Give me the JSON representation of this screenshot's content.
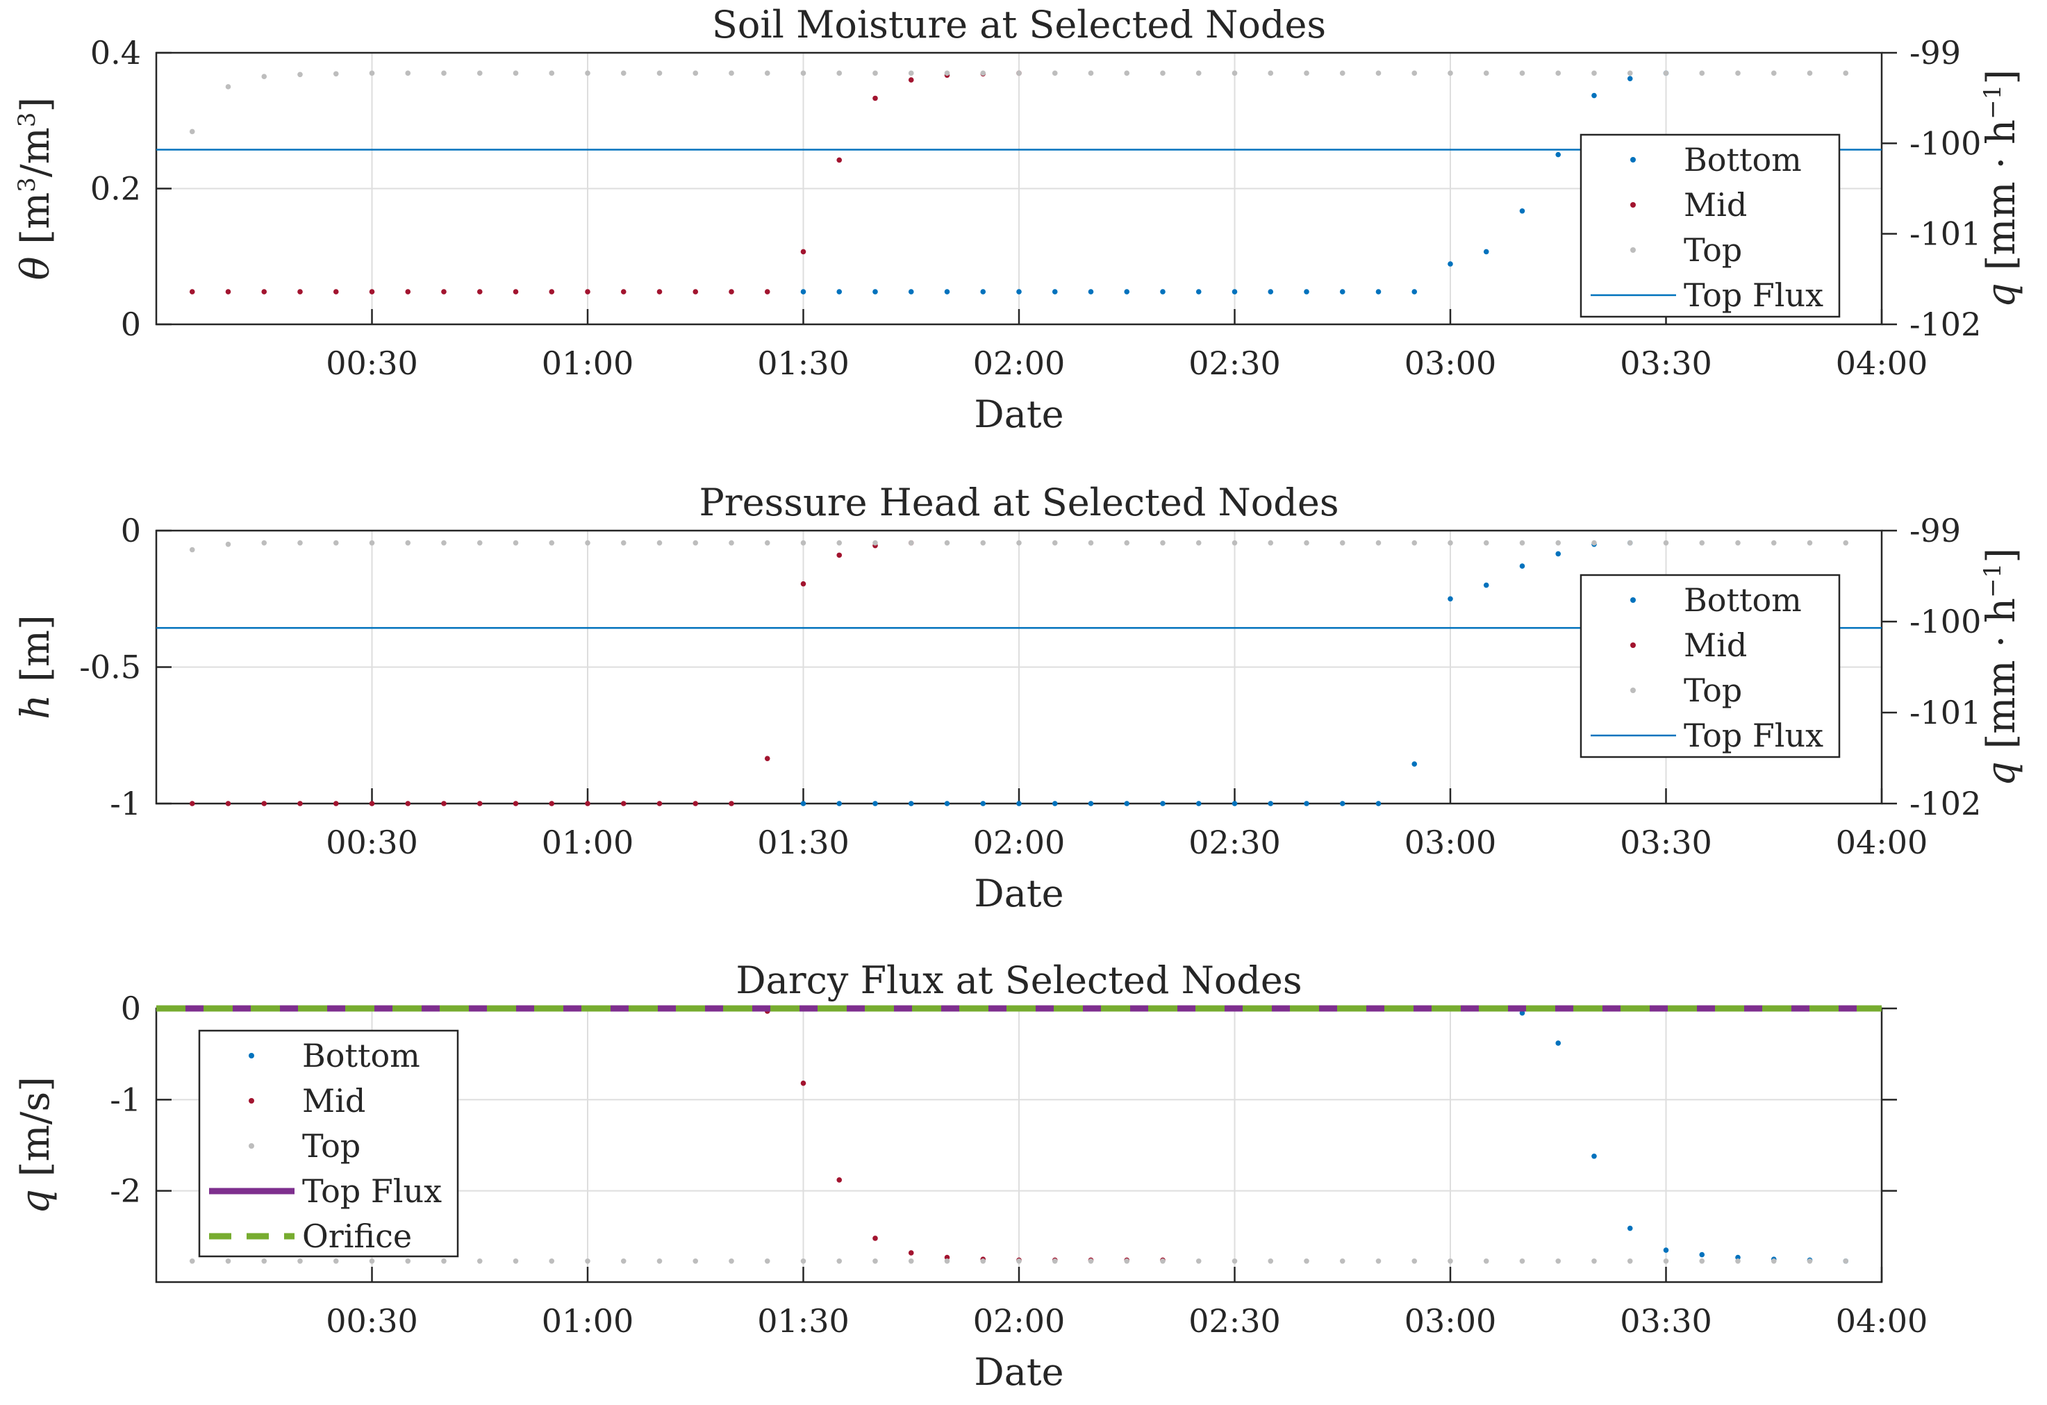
{
  "figure": {
    "x_tick_labels": [
      "00:30",
      "01:00",
      "01:30",
      "02:00",
      "02:30",
      "03:00",
      "03:30",
      "04:00"
    ]
  },
  "colors": {
    "bottom": "#0072BD",
    "mid": "#A2142F",
    "top": "#BDBDBD",
    "top_flux_line": "#0072BD",
    "top_flux_darcy": "#7E2F8E",
    "orifice": "#77AC30"
  },
  "chart_data": [
    {
      "type": "scatter",
      "title": "Soil Moisture at Selected Nodes",
      "xlabel": "Date",
      "ylabel": "θ [m³/m³]",
      "y2label": "q [mm · h⁻¹]",
      "x_unit": "minutes since 00:00",
      "xlim": [
        0,
        240
      ],
      "ylim": [
        0,
        0.4
      ],
      "yticks": [
        0,
        0.2,
        0.4
      ],
      "ytick_labels": [
        "0",
        "0.2",
        "0.4"
      ],
      "y2lim": [
        -102,
        -99
      ],
      "y2ticks": [
        -102,
        -101,
        -100,
        -99
      ],
      "y2tick_labels": [
        "-102",
        "-101",
        "-100",
        "-99"
      ],
      "grid": true,
      "legend": {
        "position": "right",
        "entries": [
          "Bottom",
          "Mid",
          "Top",
          "Top Flux"
        ]
      },
      "series": [
        {
          "name": "Bottom",
          "color_key": "bottom",
          "marker": "dot",
          "x": [
            90,
            95,
            100,
            105,
            110,
            115,
            120,
            125,
            130,
            135,
            140,
            145,
            150,
            155,
            160,
            165,
            170,
            175,
            180,
            185,
            190,
            195,
            200,
            205,
            210
          ],
          "y": [
            0.048,
            0.048,
            0.048,
            0.048,
            0.048,
            0.048,
            0.048,
            0.048,
            0.048,
            0.048,
            0.048,
            0.048,
            0.048,
            0.048,
            0.048,
            0.048,
            0.048,
            0.048,
            0.089,
            0.107,
            0.167,
            0.25,
            0.337,
            0.362,
            0.37
          ]
        },
        {
          "name": "Mid",
          "color_key": "mid",
          "marker": "dot",
          "x": [
            5,
            10,
            15,
            20,
            25,
            30,
            35,
            40,
            45,
            50,
            55,
            60,
            65,
            70,
            75,
            80,
            85,
            90,
            95,
            100,
            105,
            110,
            115,
            120
          ],
          "y": [
            0.048,
            0.048,
            0.048,
            0.048,
            0.048,
            0.048,
            0.048,
            0.048,
            0.048,
            0.048,
            0.048,
            0.048,
            0.048,
            0.048,
            0.048,
            0.048,
            0.048,
            0.107,
            0.242,
            0.333,
            0.36,
            0.367,
            0.369,
            0.37
          ]
        },
        {
          "name": "Top",
          "color_key": "top",
          "marker": "dot",
          "x": [
            5,
            10,
            15,
            20,
            25,
            30,
            35,
            40,
            45,
            50,
            55,
            60,
            65,
            70,
            75,
            80,
            85,
            90,
            95,
            100,
            105,
            110,
            115,
            120,
            125,
            130,
            135,
            140,
            145,
            150,
            155,
            160,
            165,
            170,
            175,
            180,
            185,
            190,
            195,
            200,
            205,
            210,
            215,
            220,
            225,
            230,
            235
          ],
          "y": [
            0.284,
            0.35,
            0.365,
            0.368,
            0.369,
            0.37,
            0.37,
            0.37,
            0.37,
            0.37,
            0.37,
            0.37,
            0.37,
            0.37,
            0.37,
            0.37,
            0.37,
            0.37,
            0.37,
            0.37,
            0.37,
            0.37,
            0.37,
            0.37,
            0.37,
            0.37,
            0.37,
            0.37,
            0.37,
            0.37,
            0.37,
            0.37,
            0.37,
            0.37,
            0.37,
            0.37,
            0.37,
            0.37,
            0.37,
            0.37,
            0.37,
            0.37,
            0.37,
            0.37,
            0.37,
            0.37,
            0.37
          ]
        },
        {
          "name": "Top Flux",
          "color_key": "top_flux_line",
          "marker": "line",
          "axis": "right",
          "x": [
            0,
            240
          ],
          "y": [
            -100.07,
            -100.07
          ]
        }
      ]
    },
    {
      "type": "scatter",
      "title": "Pressure Head at Selected Nodes",
      "xlabel": "Date",
      "ylabel": "h [m]",
      "y2label": "q [mm · h⁻¹]",
      "x_unit": "minutes since 00:00",
      "xlim": [
        0,
        240
      ],
      "ylim": [
        -1,
        0
      ],
      "yticks": [
        -1,
        -0.5,
        0
      ],
      "ytick_labels": [
        "-1",
        "-0.5",
        "0"
      ],
      "y2lim": [
        -102,
        -99
      ],
      "y2ticks": [
        -102,
        -101,
        -100,
        -99
      ],
      "y2tick_labels": [
        "-102",
        "-101",
        "-100",
        "-99"
      ],
      "grid": true,
      "legend": {
        "position": "right",
        "entries": [
          "Bottom",
          "Mid",
          "Top",
          "Top Flux"
        ]
      },
      "series": [
        {
          "name": "Bottom",
          "color_key": "bottom",
          "marker": "dot",
          "x": [
            90,
            95,
            100,
            105,
            110,
            115,
            120,
            125,
            130,
            135,
            140,
            145,
            150,
            155,
            160,
            165,
            170,
            175,
            180,
            185,
            190,
            195,
            200,
            205
          ],
          "y": [
            -1,
            -1,
            -1,
            -1,
            -1,
            -1,
            -1,
            -1,
            -1,
            -1,
            -1,
            -1,
            -1,
            -1,
            -1,
            -1,
            -1,
            -0.855,
            -0.25,
            -0.2,
            -0.13,
            -0.085,
            -0.05,
            -0.045
          ]
        },
        {
          "name": "Mid",
          "color_key": "mid",
          "marker": "dot",
          "x": [
            5,
            10,
            15,
            20,
            25,
            30,
            35,
            40,
            45,
            50,
            55,
            60,
            65,
            70,
            75,
            80,
            85,
            90,
            95,
            100,
            105
          ],
          "y": [
            -1,
            -1,
            -1,
            -1,
            -1,
            -1,
            -1,
            -1,
            -1,
            -1,
            -1,
            -1,
            -1,
            -1,
            -1,
            -1,
            -0.835,
            -0.195,
            -0.09,
            -0.055,
            -0.045
          ]
        },
        {
          "name": "Top",
          "color_key": "top",
          "marker": "dot",
          "x": [
            5,
            10,
            15,
            20,
            25,
            30,
            35,
            40,
            45,
            50,
            55,
            60,
            65,
            70,
            75,
            80,
            85,
            90,
            95,
            100,
            105,
            110,
            115,
            120,
            125,
            130,
            135,
            140,
            145,
            150,
            155,
            160,
            165,
            170,
            175,
            180,
            185,
            190,
            195,
            200,
            205,
            210,
            215,
            220,
            225,
            230,
            235
          ],
          "y": [
            -0.07,
            -0.05,
            -0.045,
            -0.045,
            -0.045,
            -0.045,
            -0.045,
            -0.045,
            -0.045,
            -0.045,
            -0.045,
            -0.045,
            -0.045,
            -0.045,
            -0.045,
            -0.045,
            -0.045,
            -0.045,
            -0.045,
            -0.045,
            -0.045,
            -0.045,
            -0.045,
            -0.045,
            -0.045,
            -0.045,
            -0.045,
            -0.045,
            -0.045,
            -0.045,
            -0.045,
            -0.045,
            -0.045,
            -0.045,
            -0.045,
            -0.045,
            -0.045,
            -0.045,
            -0.045,
            -0.045,
            -0.045,
            -0.045,
            -0.045,
            -0.045,
            -0.045,
            -0.045,
            -0.045
          ]
        },
        {
          "name": "Top Flux",
          "color_key": "top_flux_line",
          "marker": "line",
          "axis": "right",
          "x": [
            0,
            240
          ],
          "y": [
            -100.07,
            -100.07
          ]
        }
      ]
    },
    {
      "type": "scatter",
      "title": "Darcy Flux at Selected Nodes",
      "xlabel": "Date",
      "ylabel": "q [m/s]",
      "x_unit": "minutes since 00:00",
      "xlim": [
        0,
        240
      ],
      "ylim": [
        -3,
        0
      ],
      "yticks": [
        -2,
        -1,
        0
      ],
      "ytick_labels": [
        "-2",
        "-1",
        "0"
      ],
      "grid": true,
      "legend": {
        "position": "left",
        "entries": [
          "Bottom",
          "Mid",
          "Top",
          "Top Flux",
          "Orifice"
        ]
      },
      "series": [
        {
          "name": "Bottom",
          "color_key": "bottom",
          "marker": "dot",
          "x": [
            190,
            195,
            200,
            205,
            210,
            215,
            220,
            225,
            230,
            235
          ],
          "y": [
            -0.05,
            -0.38,
            -1.62,
            -2.41,
            -2.65,
            -2.7,
            -2.73,
            -2.75,
            -2.76,
            -2.77
          ]
        },
        {
          "name": "Mid",
          "color_key": "mid",
          "marker": "dot",
          "x": [
            85,
            90,
            95,
            100,
            105,
            110,
            115,
            120,
            125,
            130,
            135,
            140
          ],
          "y": [
            -0.03,
            -0.82,
            -1.88,
            -2.52,
            -2.68,
            -2.73,
            -2.75,
            -2.76,
            -2.76,
            -2.76,
            -2.76,
            -2.76
          ]
        },
        {
          "name": "Top",
          "color_key": "top",
          "marker": "dot",
          "x": [
            5,
            10,
            15,
            20,
            25,
            30,
            35,
            40,
            45,
            50,
            55,
            60,
            65,
            70,
            75,
            80,
            85,
            90,
            95,
            100,
            105,
            110,
            115,
            120,
            125,
            130,
            135,
            140,
            145,
            150,
            155,
            160,
            165,
            170,
            175,
            180,
            185,
            190,
            195,
            200,
            205,
            210,
            215,
            220,
            225,
            230,
            235
          ],
          "y": [
            -2.77,
            -2.77,
            -2.77,
            -2.77,
            -2.77,
            -2.77,
            -2.77,
            -2.77,
            -2.77,
            -2.77,
            -2.77,
            -2.77,
            -2.77,
            -2.77,
            -2.77,
            -2.77,
            -2.77,
            -2.77,
            -2.77,
            -2.77,
            -2.77,
            -2.77,
            -2.77,
            -2.77,
            -2.77,
            -2.77,
            -2.77,
            -2.77,
            -2.77,
            -2.77,
            -2.77,
            -2.77,
            -2.77,
            -2.77,
            -2.77,
            -2.77,
            -2.77,
            -2.77,
            -2.77,
            -2.77,
            -2.77,
            -2.77,
            -2.77,
            -2.77,
            -2.77,
            -2.77,
            -2.77
          ]
        },
        {
          "name": "Top Flux",
          "color_key": "top_flux_darcy",
          "marker": "line",
          "x": [
            0,
            240
          ],
          "y": [
            0,
            0
          ]
        },
        {
          "name": "Orifice",
          "color_key": "orifice",
          "marker": "dashed",
          "x": [
            0,
            240
          ],
          "y": [
            0,
            0
          ]
        }
      ]
    }
  ]
}
